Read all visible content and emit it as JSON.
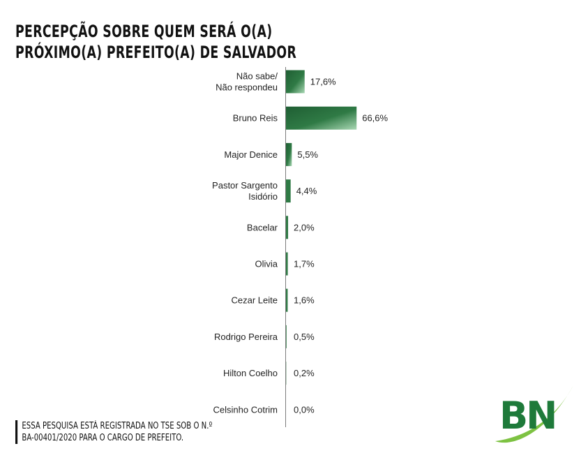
{
  "header": {
    "title_line1": "PERCEPÇÃO SOBRE QUEM SERÁ O(A)",
    "title_line2": "PRÓXIMO(A) PREFEITO(A) DE SALVADOR"
  },
  "footnote": {
    "line1": "ESSA PESQUISA ESTÁ REGISTRADA NO TSE SOB O N.º",
    "line2": "BA-00401/2020 PARA O CARGO DE PREFEITO."
  },
  "logo": {
    "text": "BN",
    "color": "#1e7a3a",
    "swoosh_color": "#7dc242"
  },
  "chart_data": {
    "type": "bar",
    "orientation": "horizontal",
    "title": "",
    "xlabel": "",
    "ylabel": "",
    "xlim": [
      0,
      100
    ],
    "grid": false,
    "legend": "none",
    "bar_color": "#2f7a45",
    "categories": [
      [
        "Não sabe/",
        "Não respondeu"
      ],
      [
        "Bruno Reis"
      ],
      [
        "Major Denice"
      ],
      [
        "Pastor Sargento",
        "Isidório"
      ],
      [
        "Bacelar"
      ],
      [
        "Olivia"
      ],
      [
        "Cezar Leite"
      ],
      [
        "Rodrigo Pereira"
      ],
      [
        "Hilton Coelho"
      ],
      [
        "Celsinho Cotrim"
      ]
    ],
    "values": [
      17.6,
      66.6,
      5.5,
      4.4,
      2.0,
      1.7,
      1.6,
      0.5,
      0.2,
      0.0
    ],
    "value_labels": [
      "17,6%",
      "66,6%",
      "5,5%",
      "4,4%",
      "2,0%",
      "1,7%",
      "1,6%",
      "0,5%",
      "0,2%",
      "0,0%"
    ]
  }
}
